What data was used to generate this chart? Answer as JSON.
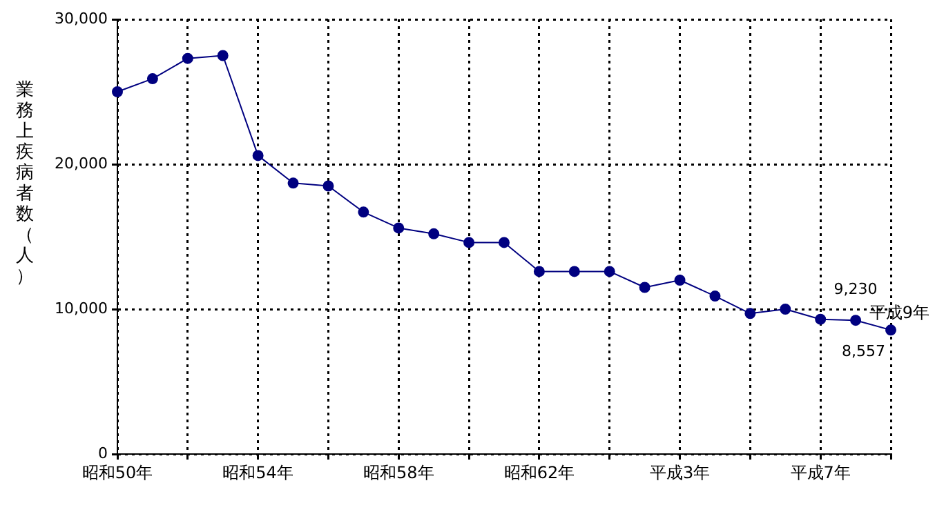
{
  "chart_data": {
    "type": "line",
    "ylabel": "業務上疾病者数（人）",
    "categories": [
      "昭和50年",
      null,
      null,
      null,
      "昭和54年",
      null,
      null,
      null,
      "昭和58年",
      null,
      null,
      null,
      "昭和62年",
      null,
      null,
      null,
      "平成3年",
      null,
      null,
      null,
      "平成7年",
      null,
      null
    ],
    "series": [
      {
        "color": "#000080",
        "values": [
          25000,
          25900,
          27300,
          27500,
          20600,
          18700,
          18500,
          16700,
          15600,
          15200,
          14600,
          14600,
          12600,
          12600,
          12600,
          11500,
          12000,
          10900,
          9700,
          10000,
          9300,
          9230,
          8557
        ],
        "value_labels": [
          null,
          null,
          null,
          null,
          null,
          null,
          null,
          null,
          null,
          null,
          null,
          null,
          null,
          null,
          null,
          null,
          null,
          null,
          null,
          null,
          null,
          "9,230",
          "8,557"
        ]
      }
    ],
    "annotations": [
      "平成9年"
    ],
    "ylim": [
      0,
      30000
    ],
    "yticks": [
      0,
      {
        "value": 10000,
        "label": "10,000"
      },
      {
        "value": 20000,
        "label": "20,000"
      },
      {
        "value": 30000,
        "label": "30,000"
      }
    ],
    "grid": true,
    "legend": false,
    "marker": "circle",
    "line_style": "solid"
  }
}
